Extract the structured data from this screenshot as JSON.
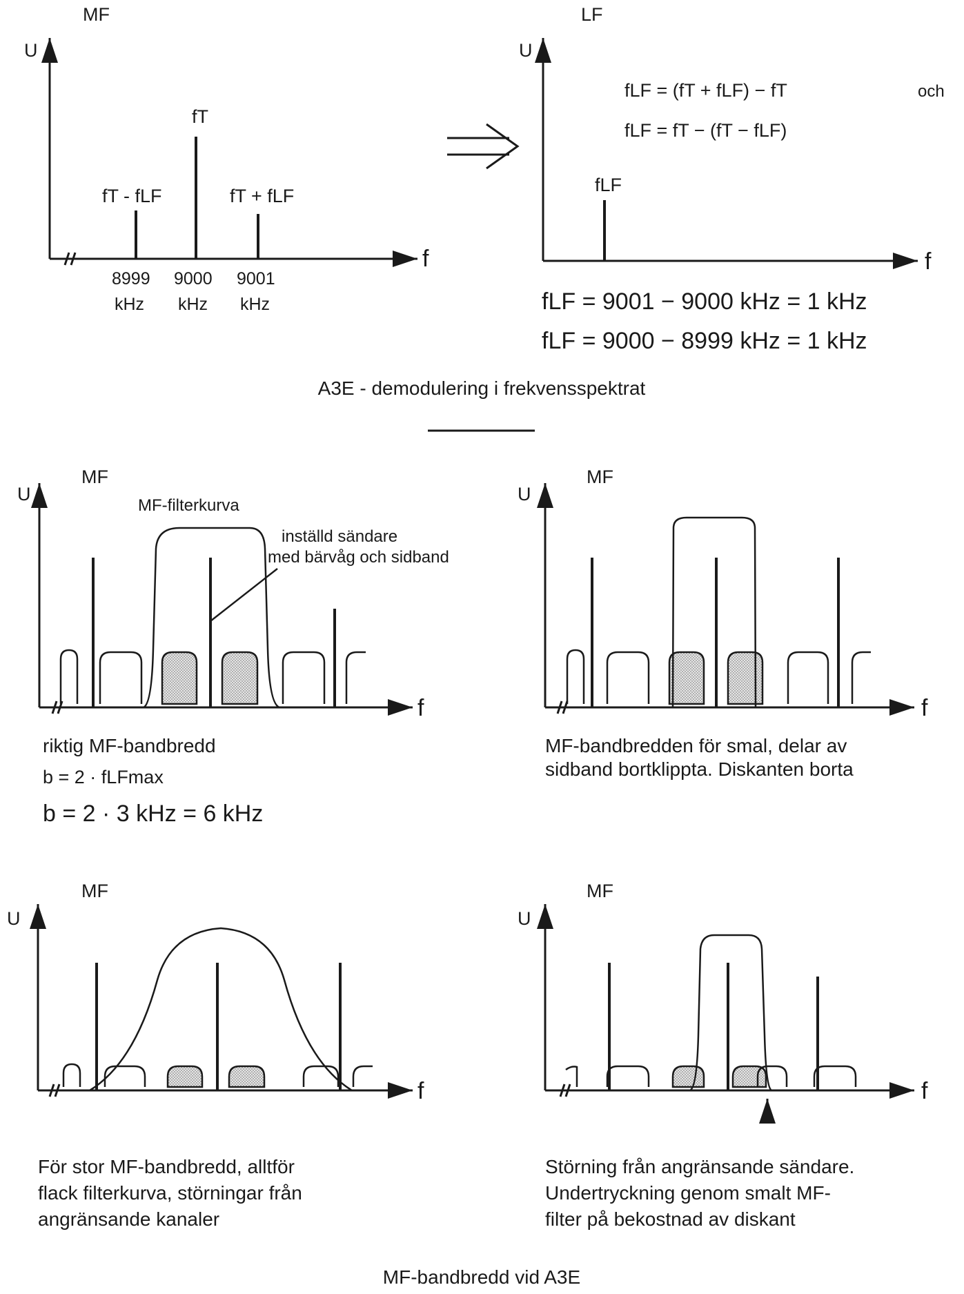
{
  "colors": {
    "ink": "#1a1a1a",
    "shade": "#cfcfcf",
    "background": "#ffffff"
  },
  "top": {
    "left": {
      "title": "MF",
      "y_axis": "U",
      "x_axis": "f",
      "label_carrier": "fT",
      "label_lower": "fT - fLF",
      "label_upper": "fT + fLF",
      "ticks": [
        {
          "value": "8999",
          "unit": "kHz"
        },
        {
          "value": "9000",
          "unit": "kHz"
        },
        {
          "value": "9001",
          "unit": "kHz"
        }
      ]
    },
    "right": {
      "title": "LF",
      "y_axis": "U",
      "x_axis": "f",
      "formula_1": "fLF = (fT + fLF) − fT",
      "formula_1_suffix": "och",
      "formula_2": "fLF = fT − (fT − fLF)",
      "label_line": "fLF",
      "result_1": "fLF = 9001 − 9000 kHz = 1 kHz",
      "result_2": "fLF = 9000 − 8999 kHz = 1 kHz"
    },
    "caption": "A3E - demodulering i frekvensspektrat"
  },
  "panels": [
    {
      "title": "MF",
      "y_axis": "U",
      "x_axis": "f",
      "annotation_curve": "MF-filterkurva",
      "annotation_line1": "inställd sändare",
      "annotation_line2": "med bärvåg och sidband",
      "caption_lines": [
        "riktig MF-bandbredd"
      ],
      "formula_1": "b = 2 · fLFmax",
      "formula_2": "b = 2 · 3 kHz = 6 kHz"
    },
    {
      "title": "MF",
      "y_axis": "U",
      "x_axis": "f",
      "caption_lines": [
        "MF-bandbredden för smal, delar av",
        "sidband bortklippta. Diskanten borta"
      ]
    },
    {
      "title": "MF",
      "y_axis": "U",
      "x_axis": "f",
      "caption_lines": [
        "För stor MF-bandbredd, alltför",
        "flack filterkurva, störningar från",
        "angränsande kanaler"
      ]
    },
    {
      "title": "MF",
      "y_axis": "U",
      "x_axis": "f",
      "caption_lines": [
        "Störning från angränsande sändare.",
        "Undertryckning genom smalt MF-",
        "filter på bekostnad av diskant"
      ]
    }
  ],
  "bottom_caption": "MF-bandbredd vid A3E"
}
